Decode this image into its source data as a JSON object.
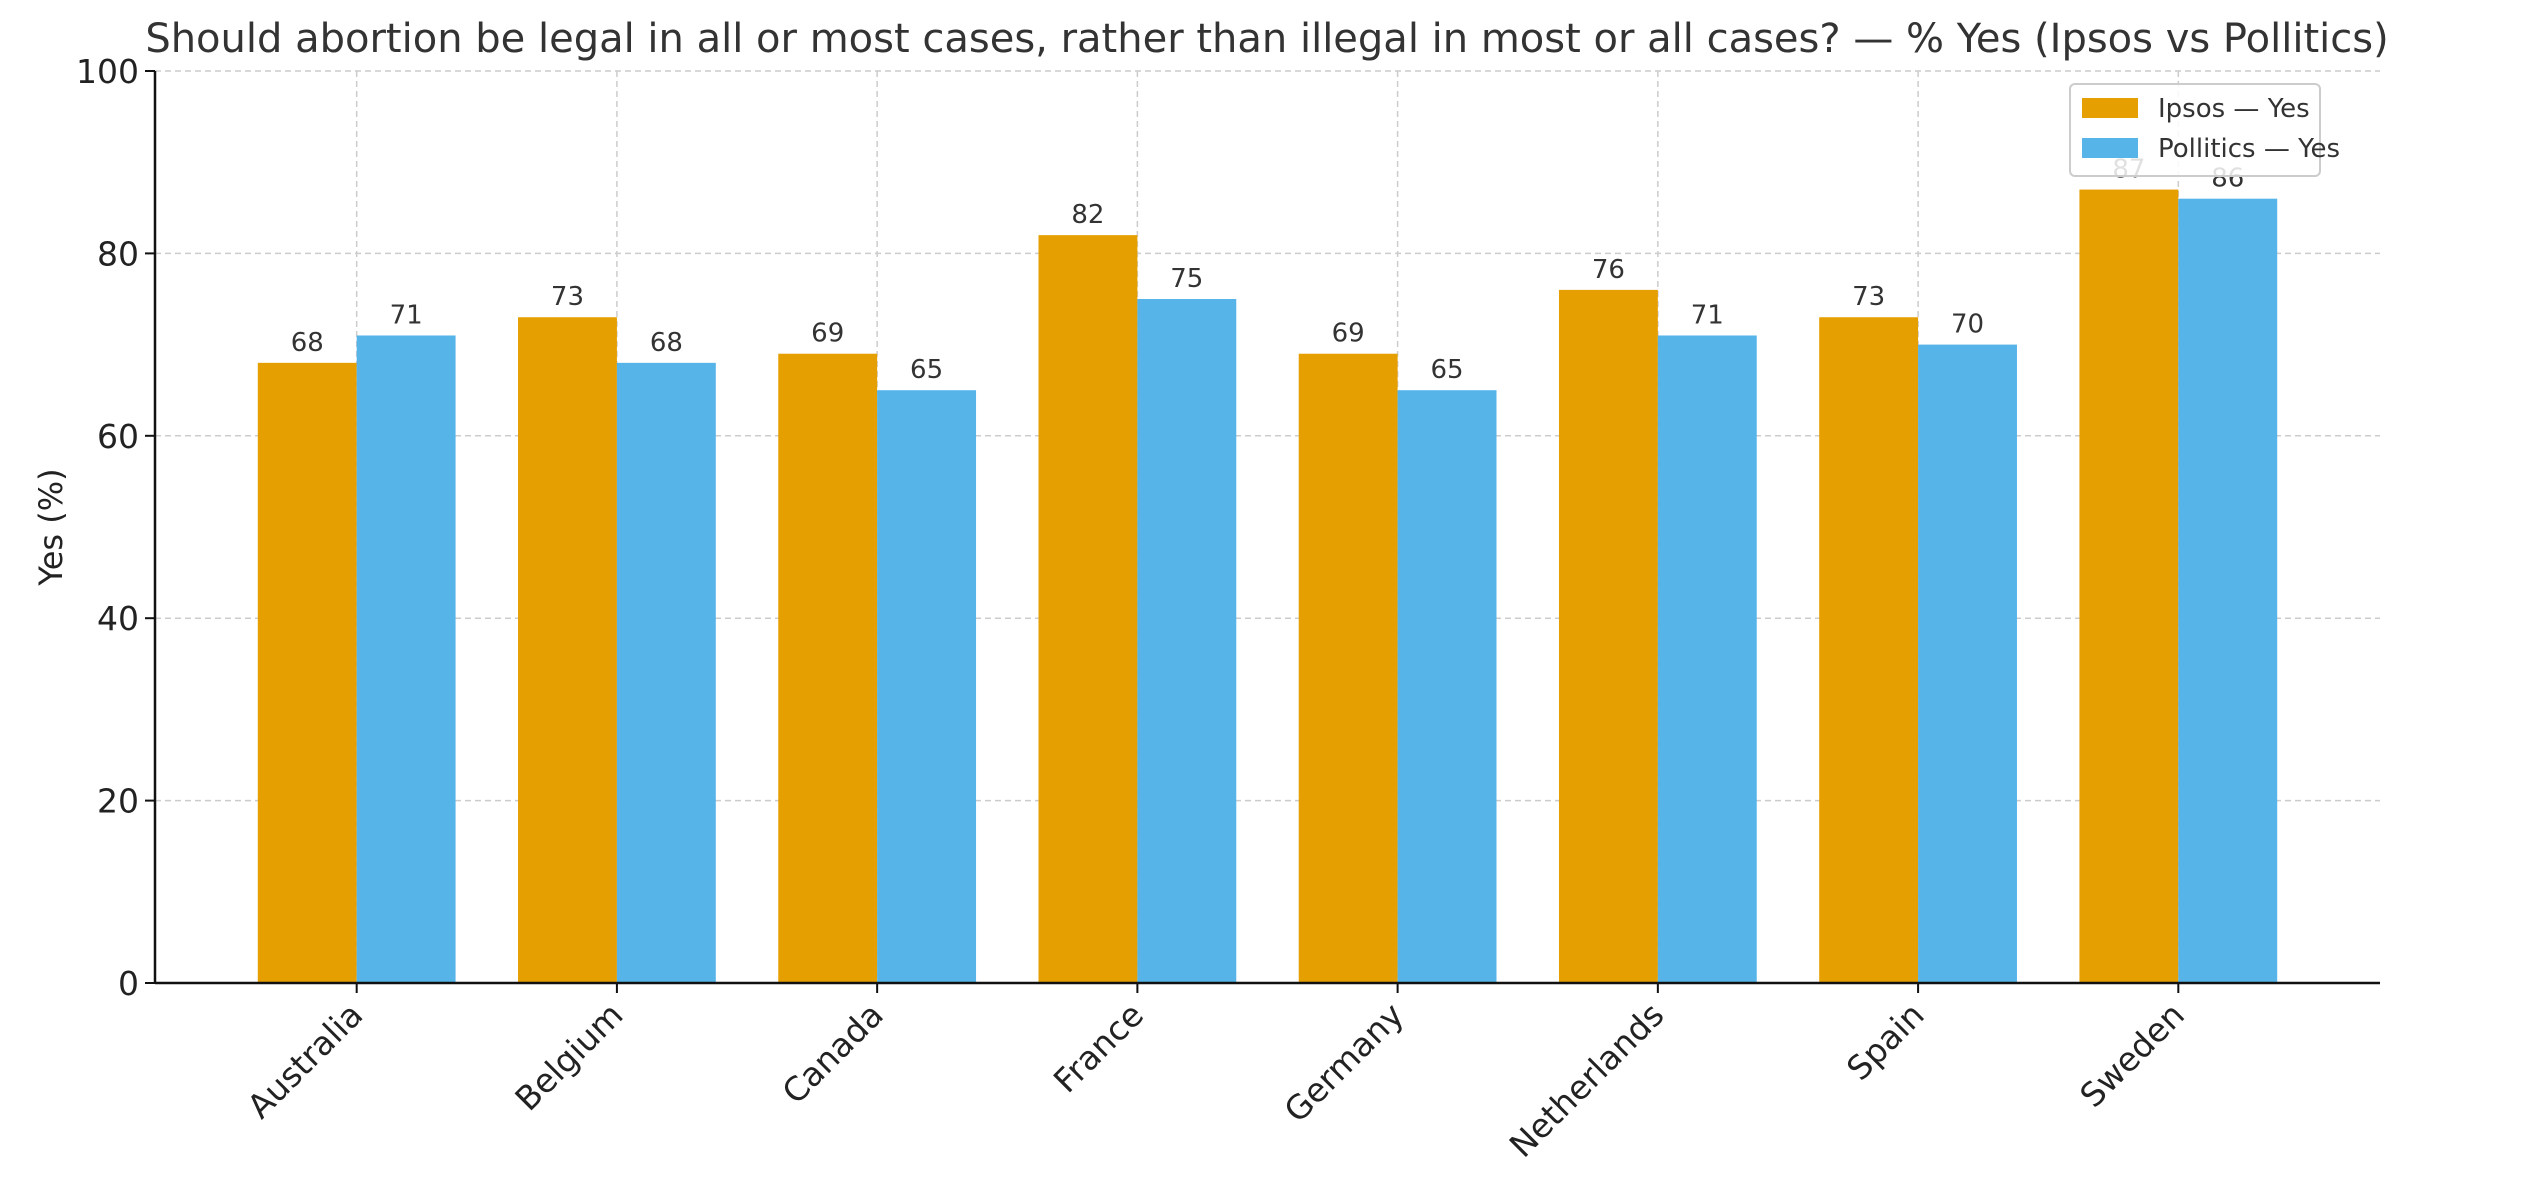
{
  "chart_data": {
    "type": "bar",
    "title": "Should abortion be legal in all or most cases, rather than illegal in most or all cases? — % Yes (Ipsos vs Pollitics)",
    "xlabel": "",
    "ylabel": "Yes (%)",
    "ylim": [
      0,
      100
    ],
    "yticks": [
      0,
      20,
      40,
      60,
      80,
      100
    ],
    "grid": true,
    "legend_position": "top-right",
    "categories": [
      "Australia",
      "Belgium",
      "Canada",
      "France",
      "Germany",
      "Netherlands",
      "Spain",
      "Sweden"
    ],
    "series": [
      {
        "name": "Ipsos — Yes",
        "color": "#E69F00",
        "values": [
          68,
          73,
          69,
          82,
          69,
          76,
          73,
          87
        ]
      },
      {
        "name": "Pollitics — Yes",
        "color": "#56B4E9",
        "values": [
          71,
          68,
          65,
          75,
          65,
          71,
          70,
          86
        ]
      }
    ]
  }
}
